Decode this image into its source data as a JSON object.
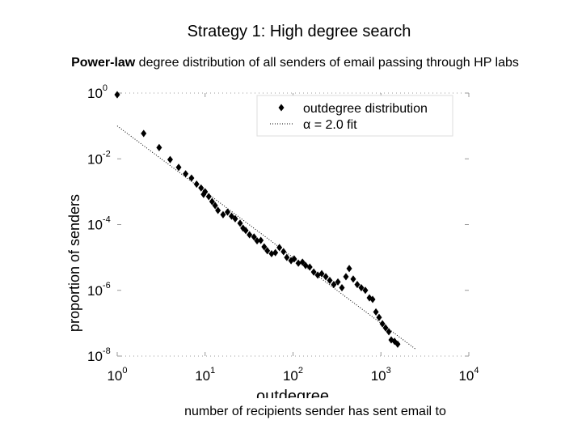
{
  "chart_data": {
    "type": "scatter",
    "title": "Strategy 1: High degree search",
    "subtitle": [
      {
        "text": "Power-law",
        "bold": true
      },
      {
        "text": " degree distribution of all senders of email passing through HP labs",
        "bold": false
      }
    ],
    "xlabel": "outdegree",
    "ylabel": "proportion of senders",
    "caption": "number of recipients sender has sent email to",
    "xscale": "log",
    "yscale": "log",
    "xlim": [
      1,
      10000
    ],
    "ylim": [
      1e-08,
      1
    ],
    "xticks": [
      {
        "value": 1,
        "label": "10^0"
      },
      {
        "value": 10,
        "label": "10^1"
      },
      {
        "value": 100,
        "label": "10^2"
      },
      {
        "value": 1000,
        "label": "10^3"
      },
      {
        "value": 10000,
        "label": "10^4"
      }
    ],
    "yticks": [
      {
        "value": 1e-08,
        "label": "10^-8"
      },
      {
        "value": 1e-06,
        "label": "10^-6"
      },
      {
        "value": 0.0001,
        "label": "10^-4"
      },
      {
        "value": 0.01,
        "label": "10^-2"
      },
      {
        "value": 1,
        "label": "10^0"
      }
    ],
    "legend": "upper right",
    "series": [
      {
        "name": "outdegree distribution",
        "type": "scatter",
        "marker": "diamond",
        "color": "#000000",
        "x": [
          1,
          2,
          3,
          4,
          5,
          6,
          7,
          8,
          9,
          10,
          9.6,
          11,
          12,
          13,
          14,
          16,
          18,
          20,
          22,
          25,
          27,
          29,
          32,
          36,
          39,
          43,
          47,
          51,
          57,
          63,
          70,
          78,
          85,
          95,
          103,
          115,
          128,
          139,
          155,
          172,
          191,
          212,
          236,
          262,
          291,
          324,
          360,
          400,
          436,
          484,
          538,
          598,
          665,
          740,
          805,
          877,
          953,
          1040,
          1130,
          1230,
          1310,
          1430,
          1550
        ],
        "values": [
          0.89,
          0.059,
          0.022,
          0.0095,
          0.0055,
          0.0035,
          0.0026,
          0.0017,
          0.0013,
          0.001,
          0.00083,
          0.00071,
          0.0005,
          0.00038,
          0.00027,
          0.0002,
          0.00024,
          0.00018,
          0.00015,
          0.00011,
          7.8e-05,
          6.6e-05,
          4.9e-05,
          4.2e-05,
          3.2e-05,
          3.3e-05,
          2.1e-05,
          1.6e-05,
          1.3e-05,
          1.4e-05,
          2e-05,
          1.5e-05,
          1e-05,
          8e-06,
          9e-06,
          6.7e-06,
          7.2e-06,
          5.7e-06,
          5.1e-06,
          3.6e-06,
          2.9e-06,
          3.2e-06,
          2.6e-06,
          2e-06,
          1.5e-06,
          1.8e-06,
          1.2e-06,
          2.6e-06,
          4.6e-06,
          2.2e-06,
          1.5e-06,
          1.2e-06,
          1e-06,
          5.9e-07,
          5.3e-07,
          2.2e-07,
          1.5e-07,
          9.6e-08,
          7.2e-08,
          5.5e-08,
          3.1e-08,
          2.8e-08,
          2.3e-08
        ]
      },
      {
        "name": "α = 2.0 fit",
        "type": "line",
        "linestyle": "dotted",
        "color": "#000000",
        "x": [
          1,
          2500
        ],
        "values": [
          0.1,
          1.6e-08
        ]
      }
    ]
  }
}
